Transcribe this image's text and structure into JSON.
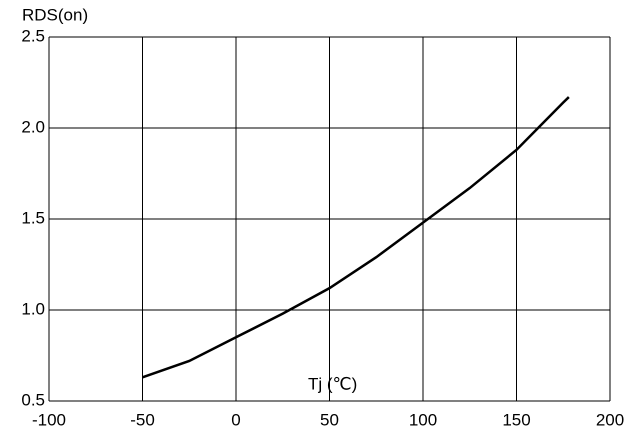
{
  "chart_data": {
    "type": "line",
    "y_label": "RDS(on)",
    "x_label": "Tj (℃)",
    "series": [
      {
        "name": "RDS(on)",
        "color": "#000000",
        "x": [
          -50,
          -25,
          0,
          25,
          50,
          75,
          100,
          125,
          150,
          175,
          178
        ],
        "values": [
          0.63,
          0.72,
          0.85,
          0.98,
          1.12,
          1.29,
          1.48,
          1.67,
          1.88,
          2.14,
          2.17
        ]
      }
    ],
    "xlim": [
      -100,
      200
    ],
    "xticks": [
      -100,
      -50,
      0,
      50,
      100,
      150,
      200
    ],
    "ylim": [
      0.5,
      2.5
    ],
    "yticks": [
      0.5,
      {
        "value": 1,
        "label": "1.0"
      },
      1.5,
      {
        "value": 2,
        "label": "2.0"
      },
      2.5
    ],
    "grid": true
  }
}
